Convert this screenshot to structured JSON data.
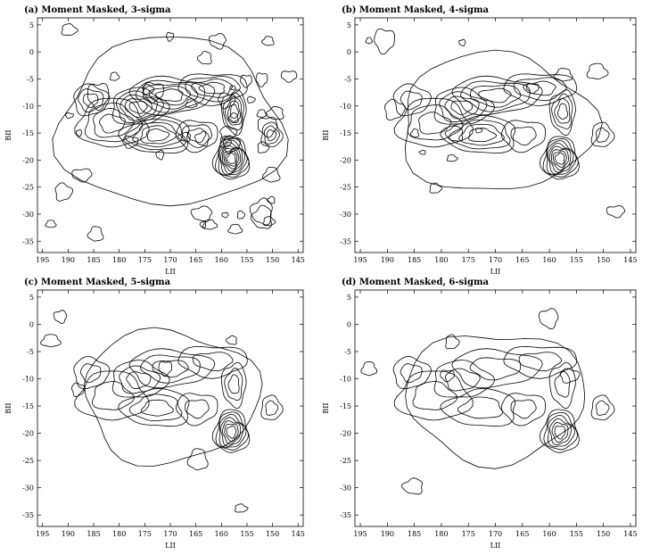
{
  "charts": [
    {
      "chart_data": {
        "type": "contour",
        "title": "(a) Moment Masked, 3-sigma",
        "xlabel": "LII",
        "ylabel": "BII",
        "xlim": [
          196,
          144
        ],
        "ylim": [
          -37.1,
          6.3
        ],
        "xticks": [
          195,
          190,
          185,
          180,
          175,
          170,
          165,
          160,
          155,
          150,
          145
        ],
        "yticks": [
          5,
          0,
          -5,
          -10,
          -15,
          -20,
          -25,
          -30,
          -35
        ]
      }
    },
    {
      "chart_data": {
        "type": "contour",
        "title": "(b) Moment Masked, 4-sigma",
        "xlabel": "LII",
        "ylabel": "BII",
        "xlim": [
          196,
          144
        ],
        "ylim": [
          -37.1,
          6.3
        ],
        "xticks": [
          195,
          190,
          185,
          180,
          175,
          170,
          165,
          160,
          155,
          150,
          145
        ],
        "yticks": [
          5,
          0,
          -5,
          -10,
          -15,
          -20,
          -25,
          -30,
          -35
        ]
      }
    },
    {
      "chart_data": {
        "type": "contour",
        "title": "(c) Moment Masked, 5-sigma",
        "xlabel": "LII",
        "ylabel": "BII",
        "xlim": [
          196,
          144
        ],
        "ylim": [
          -37.1,
          6.3
        ],
        "xticks": [
          195,
          190,
          185,
          180,
          175,
          170,
          165,
          160,
          155,
          150,
          145
        ],
        "yticks": [
          5,
          0,
          -5,
          -10,
          -15,
          -20,
          -25,
          -30,
          -35
        ]
      }
    },
    {
      "chart_data": {
        "type": "contour",
        "title": "(d) Moment Masked, 6-sigma",
        "xlabel": "LII",
        "ylabel": "BII",
        "xlim": [
          196,
          144
        ],
        "ylim": [
          -37.1,
          6.3
        ],
        "xticks": [
          195,
          190,
          185,
          180,
          175,
          170,
          165,
          160,
          155,
          150,
          145
        ],
        "yticks": [
          5,
          0,
          -5,
          -10,
          -15,
          -20,
          -25,
          -30,
          -35
        ]
      }
    }
  ]
}
